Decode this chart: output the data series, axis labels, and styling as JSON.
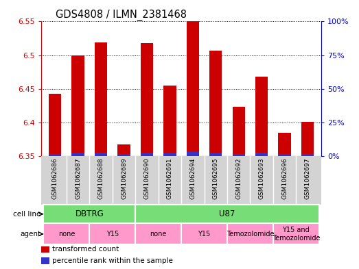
{
  "title": "GDS4808 / ILMN_2381468",
  "samples": [
    "GSM1062686",
    "GSM1062687",
    "GSM1062688",
    "GSM1062689",
    "GSM1062690",
    "GSM1062691",
    "GSM1062694",
    "GSM1062695",
    "GSM1062692",
    "GSM1062693",
    "GSM1062696",
    "GSM1062697"
  ],
  "red_values": [
    6.443,
    6.5,
    6.519,
    6.367,
    6.518,
    6.455,
    6.55,
    6.507,
    6.423,
    6.468,
    6.385,
    6.401
  ],
  "blue_values": [
    0.003,
    0.005,
    0.005,
    0.003,
    0.005,
    0.004,
    0.006,
    0.005,
    0.003,
    0.005,
    0.003,
    0.003
  ],
  "ymin": 6.35,
  "ymax": 6.55,
  "yticks_left": [
    6.35,
    6.4,
    6.45,
    6.5,
    6.55
  ],
  "yticks_right_pct": [
    0,
    25,
    50,
    75,
    100
  ],
  "bar_width": 0.55,
  "red_color": "#CC0000",
  "blue_color": "#3333CC",
  "label_color_left": "#CC0000",
  "label_color_right": "#0000CC",
  "gray_bg": "#D3D3D3",
  "green_color": "#77DD77",
  "pink_color": "#FF99CC",
  "cell_groups": [
    {
      "label": "DBTRG",
      "start": 0,
      "end": 3
    },
    {
      "label": "U87",
      "start": 4,
      "end": 11
    }
  ],
  "agent_groups": [
    {
      "label": "none",
      "start": 0,
      "end": 1
    },
    {
      "label": "Y15",
      "start": 2,
      "end": 3
    },
    {
      "label": "none",
      "start": 4,
      "end": 5
    },
    {
      "label": "Y15",
      "start": 6,
      "end": 7
    },
    {
      "label": "Temozolomide",
      "start": 8,
      "end": 9
    },
    {
      "label": "Y15 and\nTemozolomide",
      "start": 10,
      "end": 11
    }
  ],
  "legend_red": "transformed count",
  "legend_blue": "percentile rank within the sample",
  "cell_line_label": "cell line",
  "agent_label": "agent"
}
